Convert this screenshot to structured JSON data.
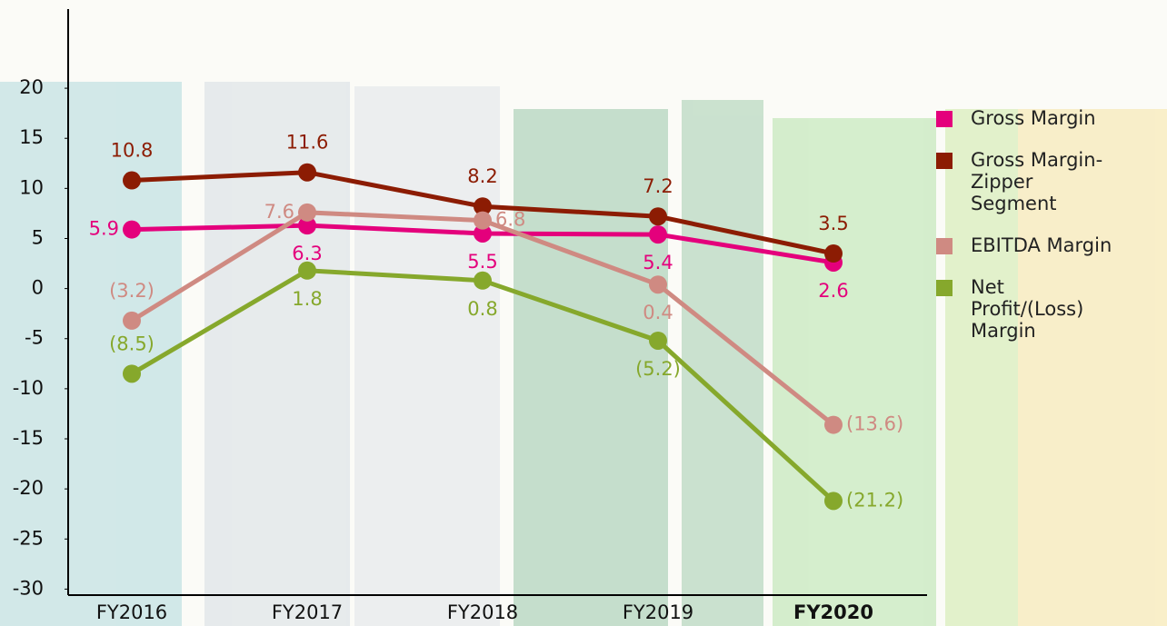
{
  "chart_data": {
    "type": "line",
    "categories": [
      "FY2016",
      "FY2017",
      "FY2018",
      "FY2019",
      "FY2020"
    ],
    "series": [
      {
        "name": "Gross Margin",
        "color": "#e4007c",
        "values": [
          5.9,
          6.3,
          5.5,
          5.4,
          2.6
        ]
      },
      {
        "name": "Gross Margin-Zipper Segment",
        "color": "#8c1c03",
        "values": [
          10.8,
          11.6,
          8.2,
          7.2,
          3.5
        ]
      },
      {
        "name": "EBITDA Margin",
        "color": "#cf8a82",
        "values": [
          -3.2,
          7.6,
          6.8,
          0.4,
          -13.6
        ],
        "value_labels": [
          "(3.2)",
          "7.6",
          "6.8",
          "0.4",
          "(13.6)"
        ]
      },
      {
        "name": "Net Profit/(Loss) Margin",
        "color": "#86a82c",
        "values": [
          -8.5,
          1.8,
          0.8,
          -5.2,
          -21.2
        ],
        "value_labels": [
          "(8.5)",
          "1.8",
          "0.8",
          "(5.2)",
          "(21.2)"
        ]
      }
    ],
    "ylim": [
      -30.6,
      27.9
    ],
    "yticks": [
      -30,
      -25,
      -20,
      -15,
      -10,
      -5,
      0,
      5,
      10,
      15,
      20
    ],
    "grid": false,
    "legend": "right"
  }
}
